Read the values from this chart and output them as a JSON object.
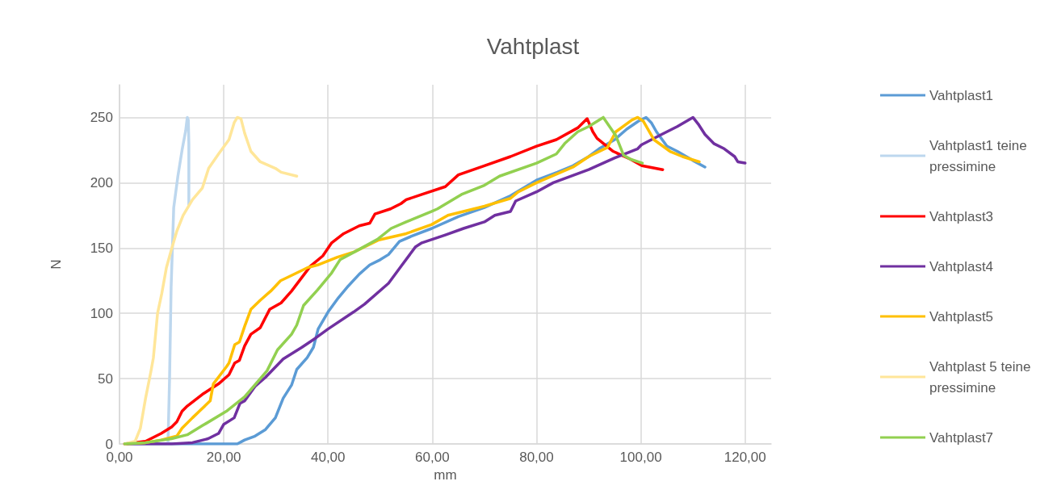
{
  "chart_data": {
    "type": "line",
    "title": "Vahtplast",
    "xlabel": "mm",
    "ylabel": "N",
    "xlim": [
      0,
      125
    ],
    "xticks": [
      {
        "value": 0,
        "label": "0,00"
      },
      {
        "value": 20,
        "label": "20,00"
      },
      {
        "value": 40,
        "label": "40,00"
      },
      {
        "value": 60,
        "label": "60,00"
      },
      {
        "value": 80,
        "label": "80,00"
      },
      {
        "value": 100,
        "label": "100,00"
      },
      {
        "value": 120,
        "label": "120,00"
      }
    ],
    "ylim": [
      0,
      275
    ],
    "yticks": [
      0,
      50,
      100,
      150,
      200,
      250
    ],
    "grid": true,
    "legend": "right",
    "marker": "none",
    "line_style": "solid",
    "series": [
      {
        "name": "Vahtplast1",
        "color": "#5b9bd5",
        "x": [
          1,
          10,
          22.6,
          24,
          26,
          28,
          29.9,
          31.4,
          33,
          34,
          36,
          37.2,
          38.1,
          40,
          42,
          43.9,
          46,
          48,
          50,
          51.6,
          53.7,
          56,
          59.9,
          65,
          70,
          75,
          80,
          84,
          87,
          90,
          92,
          95,
          97.3,
          99.5,
          101,
          102,
          103,
          105,
          107,
          110,
          112.3
        ],
        "values": [
          0,
          0,
          0,
          3,
          6,
          11,
          20,
          35,
          45,
          57,
          66,
          74,
          88,
          101,
          112,
          121,
          130,
          137,
          141,
          145,
          155,
          159,
          165,
          174,
          181,
          190,
          202,
          208,
          213,
          220,
          226,
          233,
          241,
          247,
          250,
          246,
          239,
          228,
          224,
          217,
          212
        ]
      },
      {
        "name": "Vahtplast1 teine pressimine",
        "color": "#bdd7ee",
        "x": [
          9.3,
          9.6,
          9.9,
          10.4,
          11.2,
          12,
          12.7,
          13,
          13.2,
          13.3,
          13.3
        ],
        "values": [
          0,
          50,
          120,
          181,
          205,
          225,
          240,
          250,
          248,
          230,
          183
        ]
      },
      {
        "name": "Vahtplast3",
        "color": "#ff0000",
        "x": [
          1,
          5,
          8,
          10,
          11,
          12,
          13,
          15.9,
          19,
          21,
          22.1,
          23,
          24,
          25.2,
          27,
          28.8,
          31,
          33,
          36.6,
          39,
          40.7,
          43,
          46,
          48,
          49,
          52,
          54,
          55,
          58,
          62.5,
          65,
          70,
          75,
          80,
          83.8,
          87.9,
          89.7,
          90.8,
          91.6,
          94.7,
          98,
          100.2,
          104.2
        ],
        "values": [
          0,
          2,
          8,
          13,
          17,
          25,
          29,
          38,
          46,
          53,
          62,
          64,
          75,
          84,
          89,
          103,
          108,
          117,
          136,
          144,
          154,
          161,
          167,
          169,
          176,
          180,
          184,
          187,
          191,
          197,
          206,
          213,
          220,
          228,
          233,
          242,
          249,
          239,
          234,
          224,
          218,
          213,
          210
        ]
      },
      {
        "name": "Vahtplast4",
        "color": "#7030a0",
        "x": [
          1,
          10,
          14,
          17,
          19,
          20,
          22,
          23.1,
          24,
          26,
          28,
          31.4,
          35,
          37.6,
          40,
          44.9,
          47,
          51.6,
          54,
          56.8,
          58,
          62.5,
          66,
          70,
          72,
          75,
          76,
          80,
          83.2,
          90,
          95,
          99.4,
          100.1,
          104,
          107,
          110,
          111,
          112.3,
          114,
          116,
          118,
          118.6,
          120
        ],
        "values": [
          0,
          0,
          1,
          4,
          8,
          15,
          20,
          31,
          33,
          44,
          51,
          65,
          74,
          81,
          88,
          101,
          107,
          123,
          136,
          151,
          154,
          160,
          165,
          170,
          175,
          178,
          186,
          193,
          200,
          210,
          219,
          226,
          229,
          237,
          243,
          250,
          245,
          237,
          230,
          226,
          220,
          216,
          215
        ]
      },
      {
        "name": "Vahtplast5",
        "color": "#ffc000",
        "x": [
          1,
          5,
          8,
          11,
          12,
          14,
          17.4,
          18,
          20.5,
          21,
          22.1,
          23,
          24,
          25.2,
          27,
          29,
          30.9,
          33,
          36.1,
          38,
          41.8,
          45,
          49.6,
          55,
          59.9,
          63,
          70,
          75,
          76.5,
          80,
          87,
          90,
          93.6,
          95.2,
          98.3,
          99.4,
          100.5,
          102.5,
          105.6,
          108,
          111.2
        ],
        "values": [
          0,
          1,
          3,
          6,
          12,
          20,
          33,
          46,
          59,
          62,
          76,
          78,
          90,
          103,
          110,
          117,
          125,
          129,
          135,
          137,
          143,
          147,
          156,
          161,
          168,
          175,
          182,
          188,
          193,
          200,
          212,
          220,
          227,
          239,
          248,
          250,
          247,
          233,
          224,
          220,
          216
        ]
      },
      {
        "name": "Vahtplast 5 teine pressimine",
        "color": "#ffe699",
        "x": [
          1,
          3,
          4,
          5,
          6,
          6.5,
          7.3,
          8.1,
          9,
          9.9,
          11,
          12.2,
          14,
          15.9,
          17.1,
          19,
          21,
          22,
          22.6,
          23.3,
          24,
          25.2,
          27,
          29.9,
          31,
          34
        ],
        "values": [
          0,
          2,
          12,
          35,
          55,
          66,
          100,
          115,
          135,
          148,
          163,
          175,
          187,
          196,
          211,
          222,
          233,
          246,
          250,
          249,
          238,
          224,
          216,
          211,
          208,
          205
        ]
      },
      {
        "name": "Vahtplast7",
        "color": "#92d050",
        "x": [
          1,
          5,
          10,
          13,
          15.9,
          20.5,
          24,
          28.3,
          30.3,
          33,
          34,
          35.3,
          38,
          40.7,
          42.3,
          46,
          49.6,
          52.1,
          55,
          59.9,
          61,
          65.6,
          70,
          72.9,
          80,
          83.8,
          85.4,
          87.9,
          90,
          92.8,
          94,
          95.2,
          96.7,
          98,
          100.3
        ],
        "values": [
          0,
          1,
          4,
          7,
          14,
          25,
          36,
          56,
          72,
          84,
          91,
          106,
          118,
          131,
          141,
          149,
          157,
          165,
          170,
          178,
          180,
          191,
          198,
          205,
          215,
          222,
          230,
          239,
          243,
          250,
          243,
          236,
          221,
          218,
          215
        ]
      }
    ]
  }
}
